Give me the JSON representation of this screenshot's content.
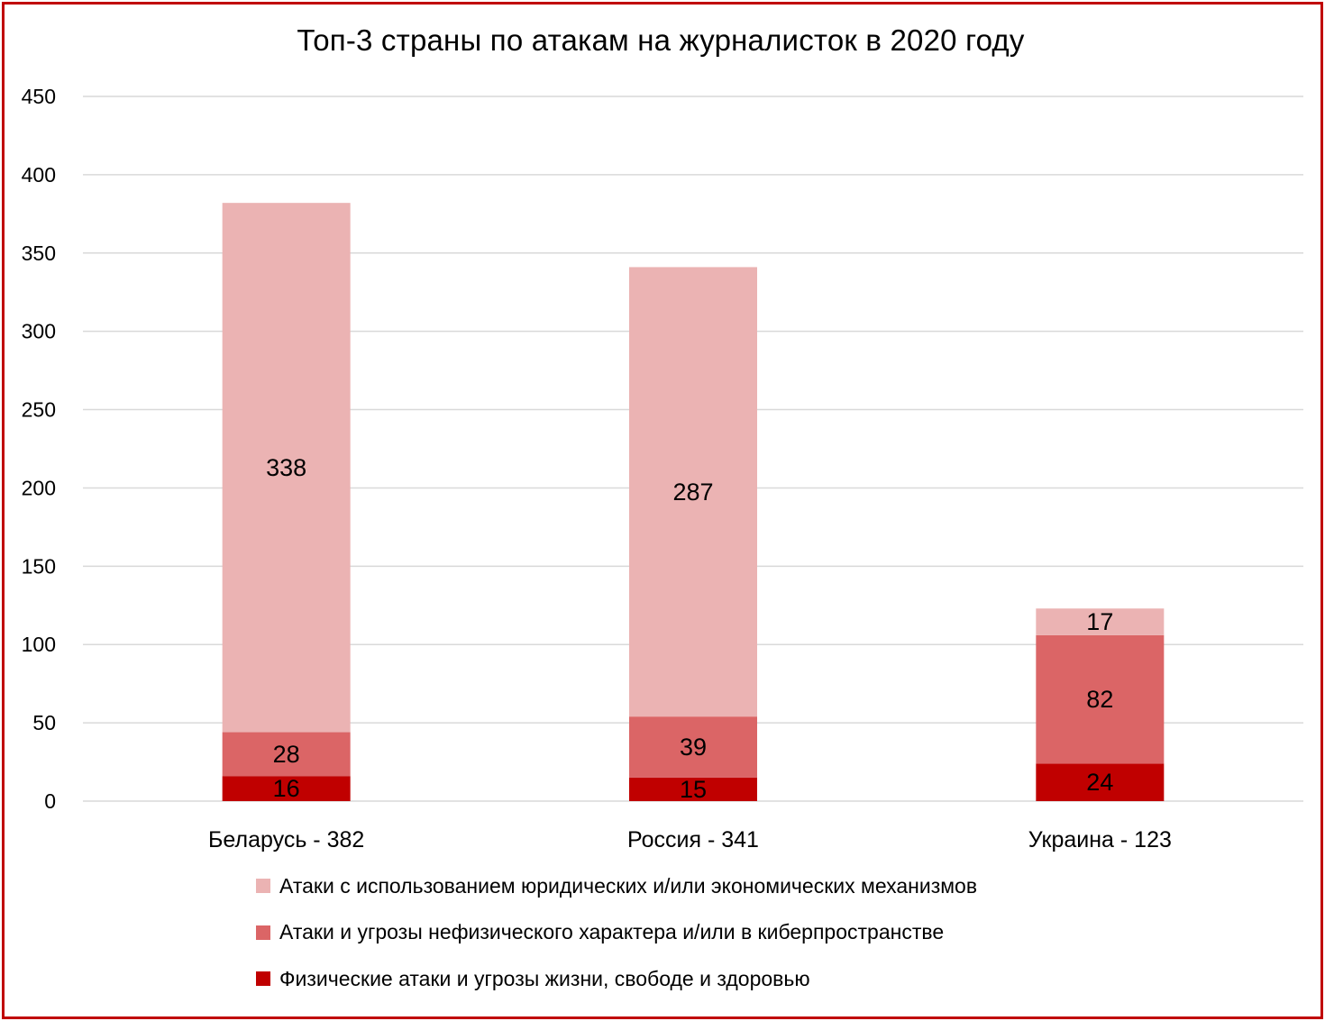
{
  "chart_data": {
    "type": "bar",
    "stacked": true,
    "title": "Топ-3 страны по атакам на журналисток в 2020 году",
    "xlabel": "",
    "ylabel": "",
    "categories": [
      "Беларусь  - 382",
      "Россия - 341",
      "Украина - 123"
    ],
    "ylim": [
      0,
      450
    ],
    "yticks": [
      "0",
      "50",
      "100",
      "150",
      "200",
      "250",
      "300",
      "350",
      "400",
      "450"
    ],
    "grid": "horizontal",
    "legend_position": "bottom",
    "series": [
      {
        "name": "Физические атаки и угрозы жизни, свободе и здоровью",
        "color": "#c00000",
        "values": [
          16,
          15,
          24
        ]
      },
      {
        "name": "Атаки и угрозы нефизического характера и/или в киберпространстве",
        "color": "#db6566",
        "values": [
          28,
          39,
          82
        ]
      },
      {
        "name": "Атаки с использованием юридических и/или экономических механизмов",
        "color": "#ebb3b3",
        "values": [
          338,
          287,
          17
        ]
      }
    ]
  },
  "legend_order": [
    2,
    1,
    0
  ],
  "colors": {
    "frame": "#c00000",
    "grid": "#d9d9d9"
  }
}
